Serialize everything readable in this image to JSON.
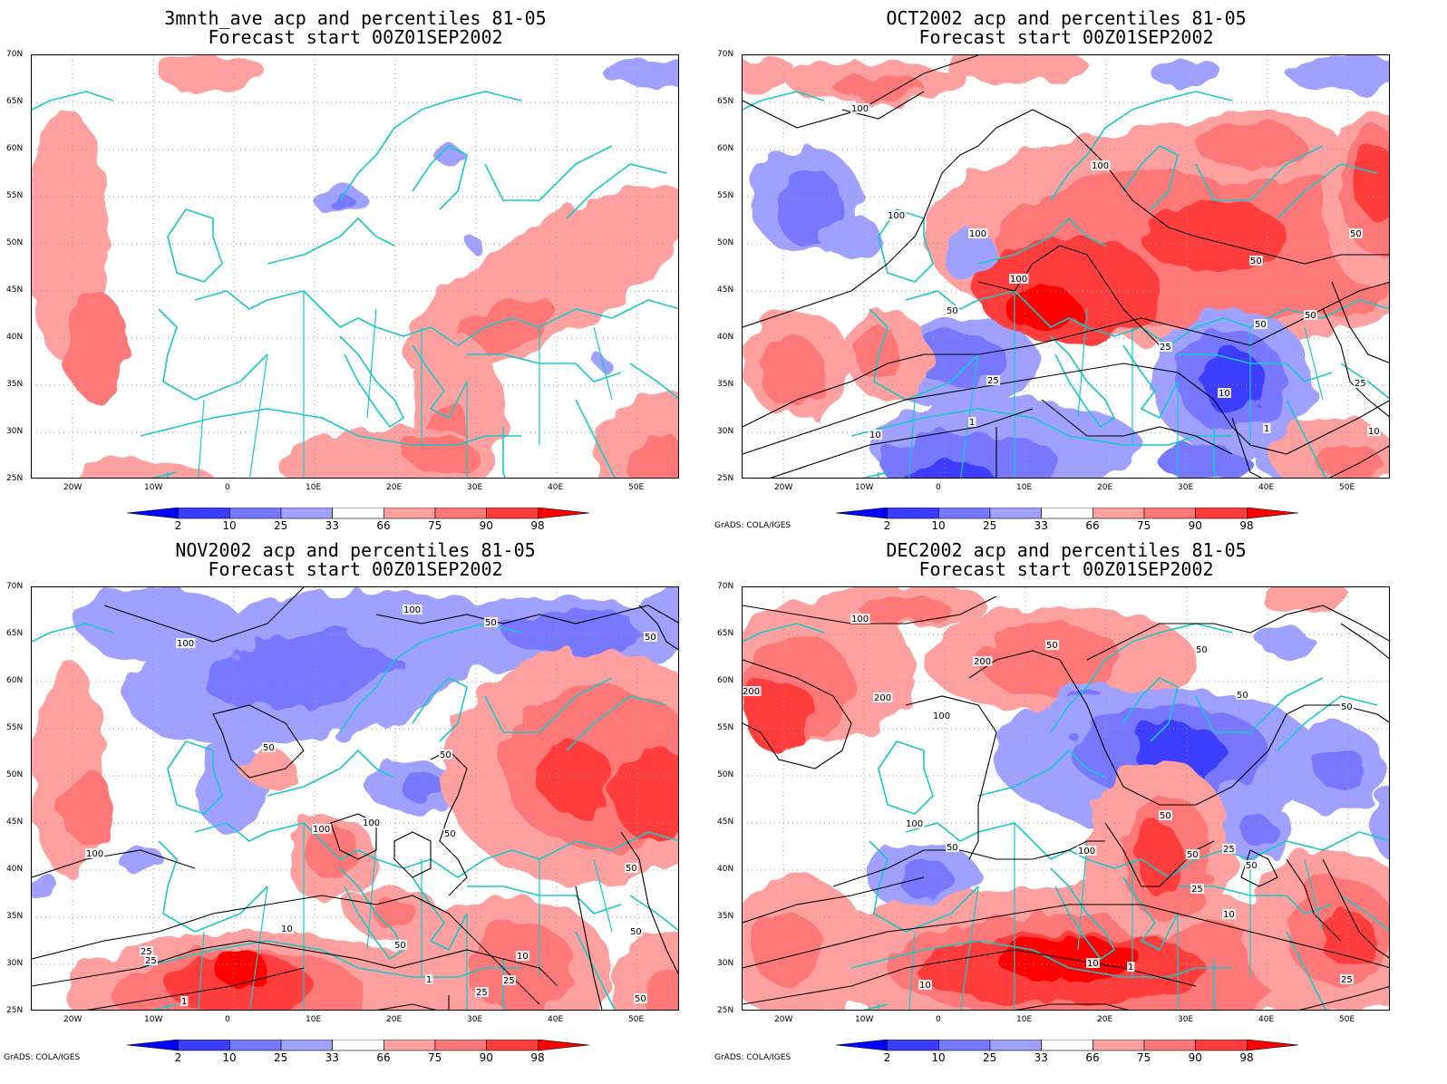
{
  "panels": [
    {
      "id": "p1",
      "title_line1": "3mnth_ave acp and percentiles 81-05",
      "title_line2": "Forecast start 00Z01SEP2002",
      "credit": ""
    },
    {
      "id": "p2",
      "title_line1": "OCT2002 acp and percentiles 81-05",
      "title_line2": "Forecast start 00Z01SEP2002",
      "credit": "GrADS: COLA/IGES"
    },
    {
      "id": "p3",
      "title_line1": "NOV2002 acp and percentiles 81-05",
      "title_line2": "Forecast start 00Z01SEP2002",
      "credit": "GrADS: COLA/IGES"
    },
    {
      "id": "p4",
      "title_line1": "DEC2002 acp and percentiles 81-05",
      "title_line2": "Forecast start 00Z01SEP2002",
      "credit": "GrADS: COLA/IGES"
    }
  ],
  "lat_labels": [
    "70N",
    "65N",
    "60N",
    "55N",
    "50N",
    "45N",
    "40N",
    "35N",
    "30N",
    "25N"
  ],
  "lon_labels": [
    "20W",
    "10W",
    "0",
    "10E",
    "20E",
    "30E",
    "40E",
    "50E"
  ],
  "colorbar": {
    "labels": [
      "2",
      "10",
      "25",
      "33",
      "66",
      "75",
      "90",
      "98"
    ],
    "colors": [
      "#0000ff",
      "#3c3cff",
      "#7878ff",
      "#a0a0ff",
      "#ffffff",
      "#ffa0a0",
      "#ff7878",
      "#ff3c3c",
      "#ff0000"
    ]
  },
  "colors": {
    "coast": "#19c8c8",
    "contour": "#000000",
    "grid": "#9a9a9a"
  },
  "contour_labels": {
    "p2": [
      "100",
      "100",
      "100",
      "100",
      "100",
      "50",
      "50",
      "50",
      "50",
      "25",
      "25",
      "10",
      "10",
      "1",
      "1",
      "50",
      "25",
      "10"
    ],
    "p3": [
      "100",
      "100",
      "50",
      "50",
      "50",
      "50",
      "100",
      "100",
      "100",
      "50",
      "50",
      "50",
      "50",
      "25",
      "10",
      "25",
      "25",
      "1",
      "25",
      "10",
      "1",
      "50"
    ],
    "p4": [
      "100",
      "200",
      "200",
      "200",
      "100",
      "50",
      "50",
      "50",
      "50",
      "100",
      "100",
      "50",
      "50",
      "25",
      "50",
      "25",
      "10",
      "10",
      "1",
      "10",
      "50",
      "25"
    ]
  }
}
